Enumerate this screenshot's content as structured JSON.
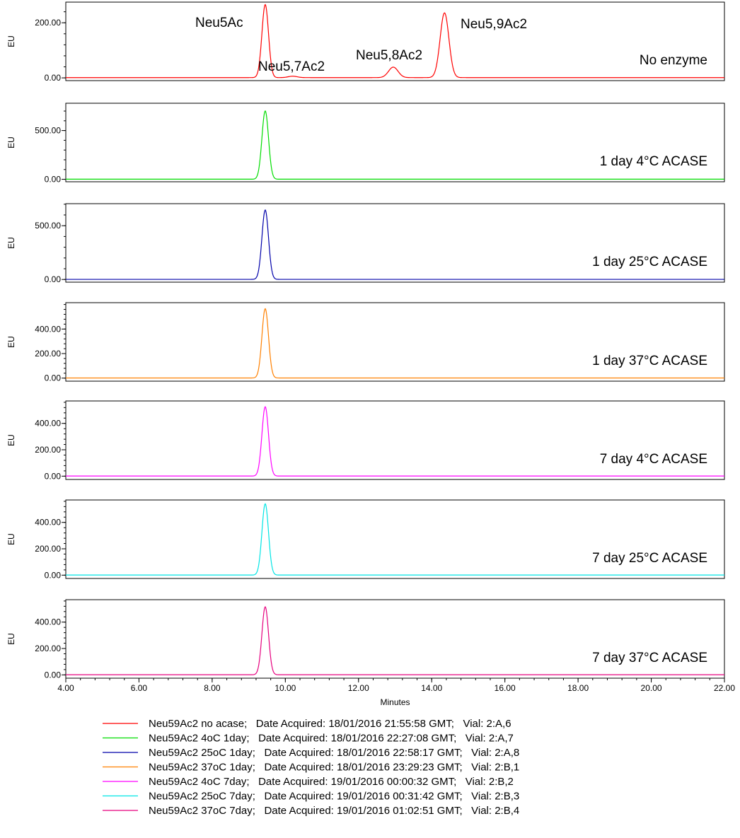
{
  "chart_data": {
    "type": "line",
    "xlabel": "Minutes",
    "xlim": [
      4.0,
      22.0
    ],
    "x_ticks": [
      "4.00",
      "6.00",
      "8.00",
      "10.00",
      "12.00",
      "14.00",
      "16.00",
      "18.00",
      "20.00",
      "22.00"
    ],
    "panels": [
      {
        "label": "No enzyme",
        "ylabel": "EU",
        "color": "#ff0000",
        "ylim": [
          -10,
          275
        ],
        "y_ticks": [
          {
            "value": 0,
            "label": "0.00"
          },
          {
            "value": 200,
            "label": "200.00"
          }
        ],
        "baseline": 1,
        "peaks": [
          {
            "name": "Neu5Ac",
            "rt": 9.45,
            "height": 265,
            "width": 0.09
          },
          {
            "name": "Neu5,7Ac2",
            "rt": 10.2,
            "height": 5,
            "width": 0.12
          },
          {
            "name": "Neu5,8Ac2",
            "rt": 12.95,
            "height": 38,
            "width": 0.13
          },
          {
            "name": "Neu5,9Ac2",
            "rt": 14.35,
            "height": 235,
            "width": 0.12
          }
        ]
      },
      {
        "label": "1 day 4°C ACASE",
        "ylabel": "EU",
        "color": "#00dd00",
        "ylim": [
          -25,
          780
        ],
        "y_ticks": [
          {
            "value": 0,
            "label": "0.00"
          },
          {
            "value": 500,
            "label": "500.00"
          }
        ],
        "baseline": 1,
        "peaks": [
          {
            "rt": 9.45,
            "height": 700,
            "width": 0.09
          }
        ]
      },
      {
        "label": "1 day 25°C ACASE",
        "ylabel": "EU",
        "color": "#0000aa",
        "ylim": [
          -25,
          705
        ],
        "y_ticks": [
          {
            "value": 0,
            "label": "0.00"
          },
          {
            "value": 500,
            "label": "500.00"
          }
        ],
        "baseline": 1,
        "peaks": [
          {
            "rt": 9.45,
            "height": 645,
            "width": 0.09
          }
        ]
      },
      {
        "label": "1 day 37°C ACASE",
        "ylabel": "EU",
        "color": "#ff8000",
        "ylim": [
          -25,
          615
        ],
        "y_ticks": [
          {
            "value": 0,
            "label": "0.00"
          },
          {
            "value": 200,
            "label": "200.00"
          },
          {
            "value": 400,
            "label": "400.00"
          }
        ],
        "baseline": 1,
        "peaks": [
          {
            "rt": 9.45,
            "height": 565,
            "width": 0.09
          }
        ]
      },
      {
        "label": "7 day 4°C ACASE",
        "ylabel": "EU",
        "color": "#ff00ff",
        "ylim": [
          -25,
          570
        ],
        "y_ticks": [
          {
            "value": 0,
            "label": "0.00"
          },
          {
            "value": 200,
            "label": "200.00"
          },
          {
            "value": 400,
            "label": "400.00"
          }
        ],
        "baseline": 1,
        "peaks": [
          {
            "rt": 9.45,
            "height": 525,
            "width": 0.09
          }
        ]
      },
      {
        "label": "7 day 25°C ACASE",
        "ylabel": "EU",
        "color": "#00e5e5",
        "ylim": [
          -25,
          570
        ],
        "y_ticks": [
          {
            "value": 0,
            "label": "0.00"
          },
          {
            "value": 200,
            "label": "200.00"
          },
          {
            "value": 400,
            "label": "400.00"
          }
        ],
        "baseline": 1,
        "peaks": [
          {
            "rt": 9.45,
            "height": 540,
            "width": 0.09
          }
        ]
      },
      {
        "label": "7 day 37°C ACASE",
        "ylabel": "EU",
        "color": "#e6007e",
        "ylim": [
          -25,
          570
        ],
        "y_ticks": [
          {
            "value": 0,
            "label": "0.00"
          },
          {
            "value": 200,
            "label": "200.00"
          },
          {
            "value": 400,
            "label": "400.00"
          }
        ],
        "baseline": 1,
        "peaks": [
          {
            "rt": 9.45,
            "height": 515,
            "width": 0.09
          }
        ]
      }
    ],
    "legend": [
      {
        "color": "#ff0000",
        "text": "Neu59Ac2 no acase;   Date Acquired: 18/01/2016 21:55:58 GMT;   Vial: 2:A,6"
      },
      {
        "color": "#00dd00",
        "text": "Neu59Ac2 4oC 1day;   Date Acquired: 18/01/2016 22:27:08 GMT;   Vial: 2:A,7"
      },
      {
        "color": "#0000aa",
        "text": "Neu59Ac2 25oC 1day;   Date Acquired: 18/01/2016 22:58:17 GMT;   Vial: 2:A,8"
      },
      {
        "color": "#ff8000",
        "text": "Neu59Ac2 37oC 1day;   Date Acquired: 18/01/2016 23:29:23 GMT;   Vial: 2:B,1"
      },
      {
        "color": "#ff00ff",
        "text": "Neu59Ac2 4oC 7day;   Date Acquired: 19/01/2016 00:00:32 GMT;   Vial: 2:B,2"
      },
      {
        "color": "#00e5e5",
        "text": "Neu59Ac2 25oC 7day;   Date Acquired: 19/01/2016 00:31:42 GMT;   Vial: 2:B,3"
      },
      {
        "color": "#e6007e",
        "text": "Neu59Ac2 37oC 7day;   Date Acquired: 19/01/2016 01:02:51 GMT;   Vial: 2:B,4"
      }
    ]
  }
}
